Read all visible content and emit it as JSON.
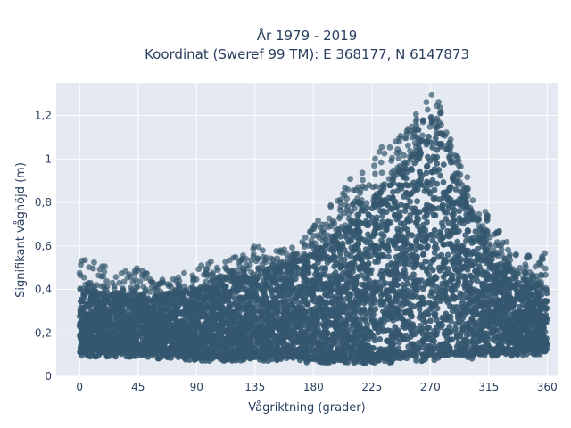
{
  "chart_data": {
    "type": "scatter",
    "title": "År 1979 - 2019",
    "subtitle": "Koordinat (Sweref 99 TM): E 368177, N 6147873",
    "xlabel": "Vågriktning (grader)",
    "ylabel": "Signifikant våghöjd (m)",
    "xlim": [
      -18,
      368
    ],
    "ylim": [
      0,
      1.35
    ],
    "x_ticks": [
      0,
      45,
      90,
      135,
      180,
      225,
      270,
      315,
      360
    ],
    "x_tick_labels": [
      "0",
      "45",
      "90",
      "135",
      "180",
      "225",
      "270",
      "315",
      "360"
    ],
    "y_ticks": [
      0,
      0.2,
      0.4,
      0.6,
      0.8,
      1.0,
      1.2
    ],
    "y_tick_labels": [
      "0",
      "0,2",
      "0,4",
      "0,6",
      "0,8",
      "1",
      "1,2"
    ],
    "grid": true,
    "marker_color": "#34576e",
    "plot_bgcolor": "#e5e9f2",
    "envelope": {
      "direction": [
        0,
        15,
        30,
        45,
        60,
        75,
        90,
        105,
        120,
        135,
        150,
        165,
        180,
        195,
        210,
        225,
        240,
        255,
        265,
        270,
        275,
        285,
        300,
        315,
        330,
        345,
        360
      ],
      "upper_dense": [
        0.4,
        0.38,
        0.38,
        0.37,
        0.37,
        0.38,
        0.4,
        0.42,
        0.45,
        0.47,
        0.49,
        0.52,
        0.56,
        0.63,
        0.72,
        0.8,
        0.9,
        1.0,
        1.1,
        1.15,
        1.15,
        1.0,
        0.78,
        0.6,
        0.5,
        0.44,
        0.4
      ],
      "max_outlier": [
        0.54,
        0.53,
        0.48,
        0.5,
        0.45,
        0.45,
        0.54,
        0.55,
        0.55,
        0.6,
        0.58,
        0.6,
        0.7,
        0.8,
        0.95,
        1.02,
        1.1,
        1.17,
        1.27,
        1.3,
        1.29,
        1.1,
        0.9,
        0.75,
        0.62,
        0.56,
        0.58
      ],
      "lower": [
        0.09,
        0.09,
        0.09,
        0.09,
        0.08,
        0.08,
        0.07,
        0.07,
        0.07,
        0.07,
        0.07,
        0.07,
        0.06,
        0.06,
        0.06,
        0.06,
        0.06,
        0.07,
        0.07,
        0.07,
        0.07,
        0.08,
        0.08,
        0.09,
        0.09,
        0.1,
        0.1
      ]
    }
  }
}
